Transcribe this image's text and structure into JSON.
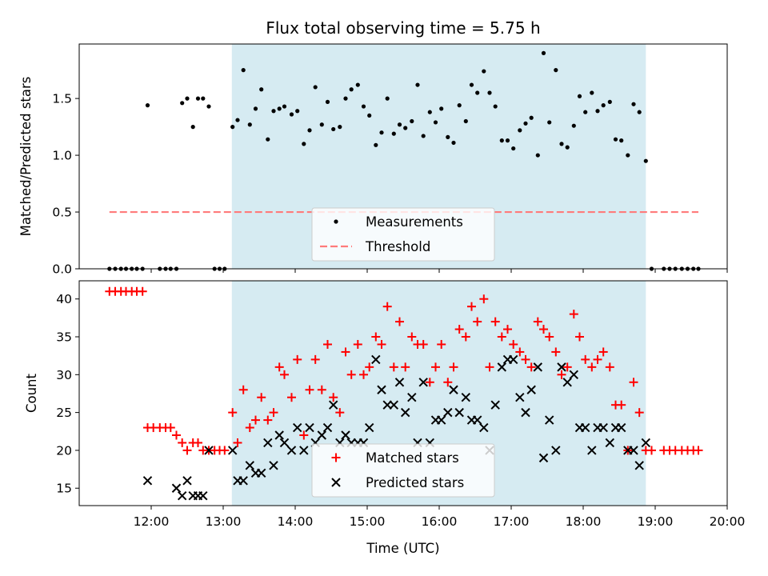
{
  "chart_data": [
    {
      "type": "scatter",
      "title": "Flux total observing time = 5.75 h",
      "xlabel": "",
      "ylabel": "Matched/Predicted stars",
      "xlim": [
        11.0,
        20.0
      ],
      "ylim": [
        0.0,
        1.98
      ],
      "yticks": [
        0.0,
        0.5,
        1.0,
        1.5
      ],
      "ytick_labels": [
        "0.0",
        "0.5",
        "1.0",
        "1.5"
      ],
      "legend_location": "lower-center",
      "highlight_span": [
        13.12,
        18.87
      ],
      "series": [
        {
          "name": "Measurements",
          "marker": "dot",
          "color": "#000000",
          "x": [
            11.42,
            11.5,
            11.58,
            11.65,
            11.73,
            11.8,
            11.88,
            11.95,
            12.12,
            12.2,
            12.27,
            12.35,
            12.43,
            12.5,
            12.58,
            12.65,
            12.72,
            12.8,
            12.88,
            12.95,
            13.02,
            13.13,
            13.2,
            13.28,
            13.37,
            13.45,
            13.53,
            13.62,
            13.7,
            13.78,
            13.85,
            13.95,
            14.03,
            14.12,
            14.2,
            14.28,
            14.37,
            14.45,
            14.53,
            14.62,
            14.7,
            14.78,
            14.87,
            14.95,
            15.03,
            15.12,
            15.2,
            15.28,
            15.37,
            15.45,
            15.53,
            15.62,
            15.7,
            15.78,
            15.87,
            15.95,
            16.03,
            16.12,
            16.2,
            16.28,
            16.37,
            16.45,
            16.53,
            16.62,
            16.7,
            16.78,
            16.87,
            16.95,
            17.03,
            17.12,
            17.2,
            17.28,
            17.37,
            17.45,
            17.53,
            17.62,
            17.7,
            17.78,
            17.87,
            17.95,
            18.03,
            18.12,
            18.2,
            18.28,
            18.37,
            18.45,
            18.53,
            18.62,
            18.7,
            18.78,
            18.87,
            18.95,
            19.12,
            19.2,
            19.28,
            19.37,
            19.45,
            19.53,
            19.6
          ],
          "y": [
            0,
            0,
            0,
            0,
            0,
            0,
            0,
            1.44,
            0,
            0,
            0,
            0,
            1.46,
            1.5,
            1.25,
            1.5,
            1.5,
            1.43,
            0,
            0,
            0,
            1.25,
            1.31,
            1.75,
            1.27,
            1.41,
            1.58,
            1.14,
            1.39,
            1.41,
            1.43,
            1.36,
            1.39,
            1.1,
            1.22,
            1.6,
            1.27,
            1.47,
            1.23,
            1.25,
            1.5,
            1.58,
            1.62,
            1.43,
            1.35,
            1.09,
            1.2,
            1.5,
            1.19,
            1.27,
            1.24,
            1.3,
            1.62,
            1.17,
            1.38,
            1.29,
            1.41,
            1.16,
            1.11,
            1.44,
            1.3,
            1.62,
            1.55,
            1.74,
            1.55,
            1.43,
            1.13,
            1.13,
            1.06,
            1.22,
            1.28,
            1.33,
            1.0,
            1.9,
            1.29,
            1.75,
            1.1,
            1.07,
            1.26,
            1.52,
            1.38,
            1.55,
            1.39,
            1.44,
            1.47,
            1.14,
            1.13,
            1.0,
            1.45,
            1.38,
            0.95,
            0,
            0,
            0,
            0,
            0,
            0,
            0,
            0
          ]
        },
        {
          "name": "Threshold",
          "marker": "dashed-line",
          "color": "#ff7b7b",
          "x": [
            11.42,
            19.6
          ],
          "y": [
            0.5,
            0.5
          ]
        }
      ]
    },
    {
      "type": "scatter",
      "title": "",
      "xlabel": "Time (UTC)",
      "ylabel": "Count",
      "xlim": [
        11.0,
        20.0
      ],
      "ylim": [
        12.7,
        42.4
      ],
      "yticks": [
        15,
        20,
        25,
        30,
        35,
        40
      ],
      "ytick_labels": [
        "15",
        "20",
        "25",
        "30",
        "35",
        "40"
      ],
      "xticks": [
        12,
        13,
        14,
        15,
        16,
        17,
        18,
        19,
        20
      ],
      "xtick_labels": [
        "12:00",
        "13:00",
        "14:00",
        "15:00",
        "16:00",
        "17:00",
        "18:00",
        "19:00",
        "20:00"
      ],
      "legend_location": "lower-center",
      "highlight_span": [
        13.12,
        18.87
      ],
      "series": [
        {
          "name": "Matched stars",
          "marker": "plus",
          "color": "#ff0000",
          "x": [
            11.42,
            11.5,
            11.58,
            11.65,
            11.73,
            11.8,
            11.88,
            11.95,
            12.03,
            12.12,
            12.2,
            12.27,
            12.35,
            12.43,
            12.5,
            12.58,
            12.65,
            12.72,
            12.8,
            12.88,
            12.95,
            13.02,
            13.13,
            13.2,
            13.28,
            13.37,
            13.45,
            13.53,
            13.62,
            13.7,
            13.78,
            13.85,
            13.95,
            14.03,
            14.12,
            14.2,
            14.28,
            14.37,
            14.45,
            14.53,
            14.62,
            14.7,
            14.78,
            14.87,
            14.95,
            15.03,
            15.12,
            15.2,
            15.28,
            15.37,
            15.45,
            15.53,
            15.62,
            15.7,
            15.78,
            15.87,
            15.95,
            16.03,
            16.12,
            16.2,
            16.28,
            16.37,
            16.45,
            16.53,
            16.62,
            16.7,
            16.78,
            16.87,
            16.95,
            17.03,
            17.12,
            17.2,
            17.28,
            17.37,
            17.45,
            17.53,
            17.62,
            17.7,
            17.78,
            17.87,
            17.95,
            18.03,
            18.12,
            18.2,
            18.28,
            18.37,
            18.45,
            18.53,
            18.62,
            18.7,
            18.78,
            18.87,
            18.95,
            19.12,
            19.2,
            19.28,
            19.37,
            19.45,
            19.53,
            19.6
          ],
          "y": [
            41,
            41,
            41,
            41,
            41,
            41,
            41,
            23,
            23,
            23,
            23,
            23,
            22,
            21,
            20,
            21,
            21,
            20,
            20,
            20,
            20,
            20,
            25,
            21,
            28,
            23,
            24,
            27,
            24,
            25,
            31,
            30,
            27,
            32,
            22,
            28,
            32,
            28,
            34,
            27,
            25,
            33,
            30,
            34,
            30,
            31,
            35,
            34,
            39,
            31,
            37,
            31,
            35,
            34,
            34,
            29,
            31,
            34,
            29,
            31,
            36,
            35,
            39,
            37,
            40,
            31,
            37,
            35,
            36,
            34,
            33,
            32,
            31,
            37,
            36,
            35,
            33,
            30,
            31,
            38,
            35,
            32,
            31,
            32,
            33,
            31,
            26,
            26,
            20,
            29,
            25,
            20,
            20,
            20,
            20,
            20,
            20,
            20,
            20,
            20
          ]
        },
        {
          "name": "Predicted stars",
          "marker": "x",
          "color": "#000000",
          "x": [
            11.95,
            12.35,
            12.43,
            12.5,
            12.58,
            12.65,
            12.72,
            12.8,
            13.13,
            13.2,
            13.28,
            13.37,
            13.45,
            13.53,
            13.62,
            13.7,
            13.78,
            13.85,
            13.95,
            14.03,
            14.12,
            14.2,
            14.28,
            14.37,
            14.45,
            14.53,
            14.62,
            14.7,
            14.78,
            14.87,
            14.95,
            15.03,
            15.12,
            15.2,
            15.28,
            15.37,
            15.45,
            15.53,
            15.62,
            15.7,
            15.78,
            15.87,
            15.95,
            16.03,
            16.12,
            16.2,
            16.28,
            16.37,
            16.45,
            16.53,
            16.62,
            16.7,
            16.78,
            16.87,
            16.95,
            17.03,
            17.12,
            17.2,
            17.28,
            17.37,
            17.45,
            17.53,
            17.62,
            17.7,
            17.78,
            17.87,
            17.95,
            18.03,
            18.12,
            18.2,
            18.28,
            18.37,
            18.45,
            18.53,
            18.62,
            18.7,
            18.78,
            18.87
          ],
          "y": [
            16,
            15,
            14,
            16,
            14,
            14,
            14,
            20,
            20,
            16,
            16,
            18,
            17,
            17,
            21,
            18,
            22,
            21,
            20,
            23,
            20,
            23,
            21,
            22,
            23,
            26,
            21,
            22,
            21,
            21,
            21,
            23,
            32,
            28,
            26,
            26,
            29,
            25,
            27,
            21,
            29,
            21,
            24,
            24,
            25,
            28,
            25,
            27,
            24,
            24,
            23,
            20,
            26,
            31,
            32,
            32,
            27,
            25,
            28,
            31,
            19,
            24,
            20,
            31,
            29,
            30,
            23,
            23,
            20,
            23,
            23,
            21,
            23,
            23,
            20,
            20,
            18,
            21
          ]
        }
      ]
    }
  ]
}
